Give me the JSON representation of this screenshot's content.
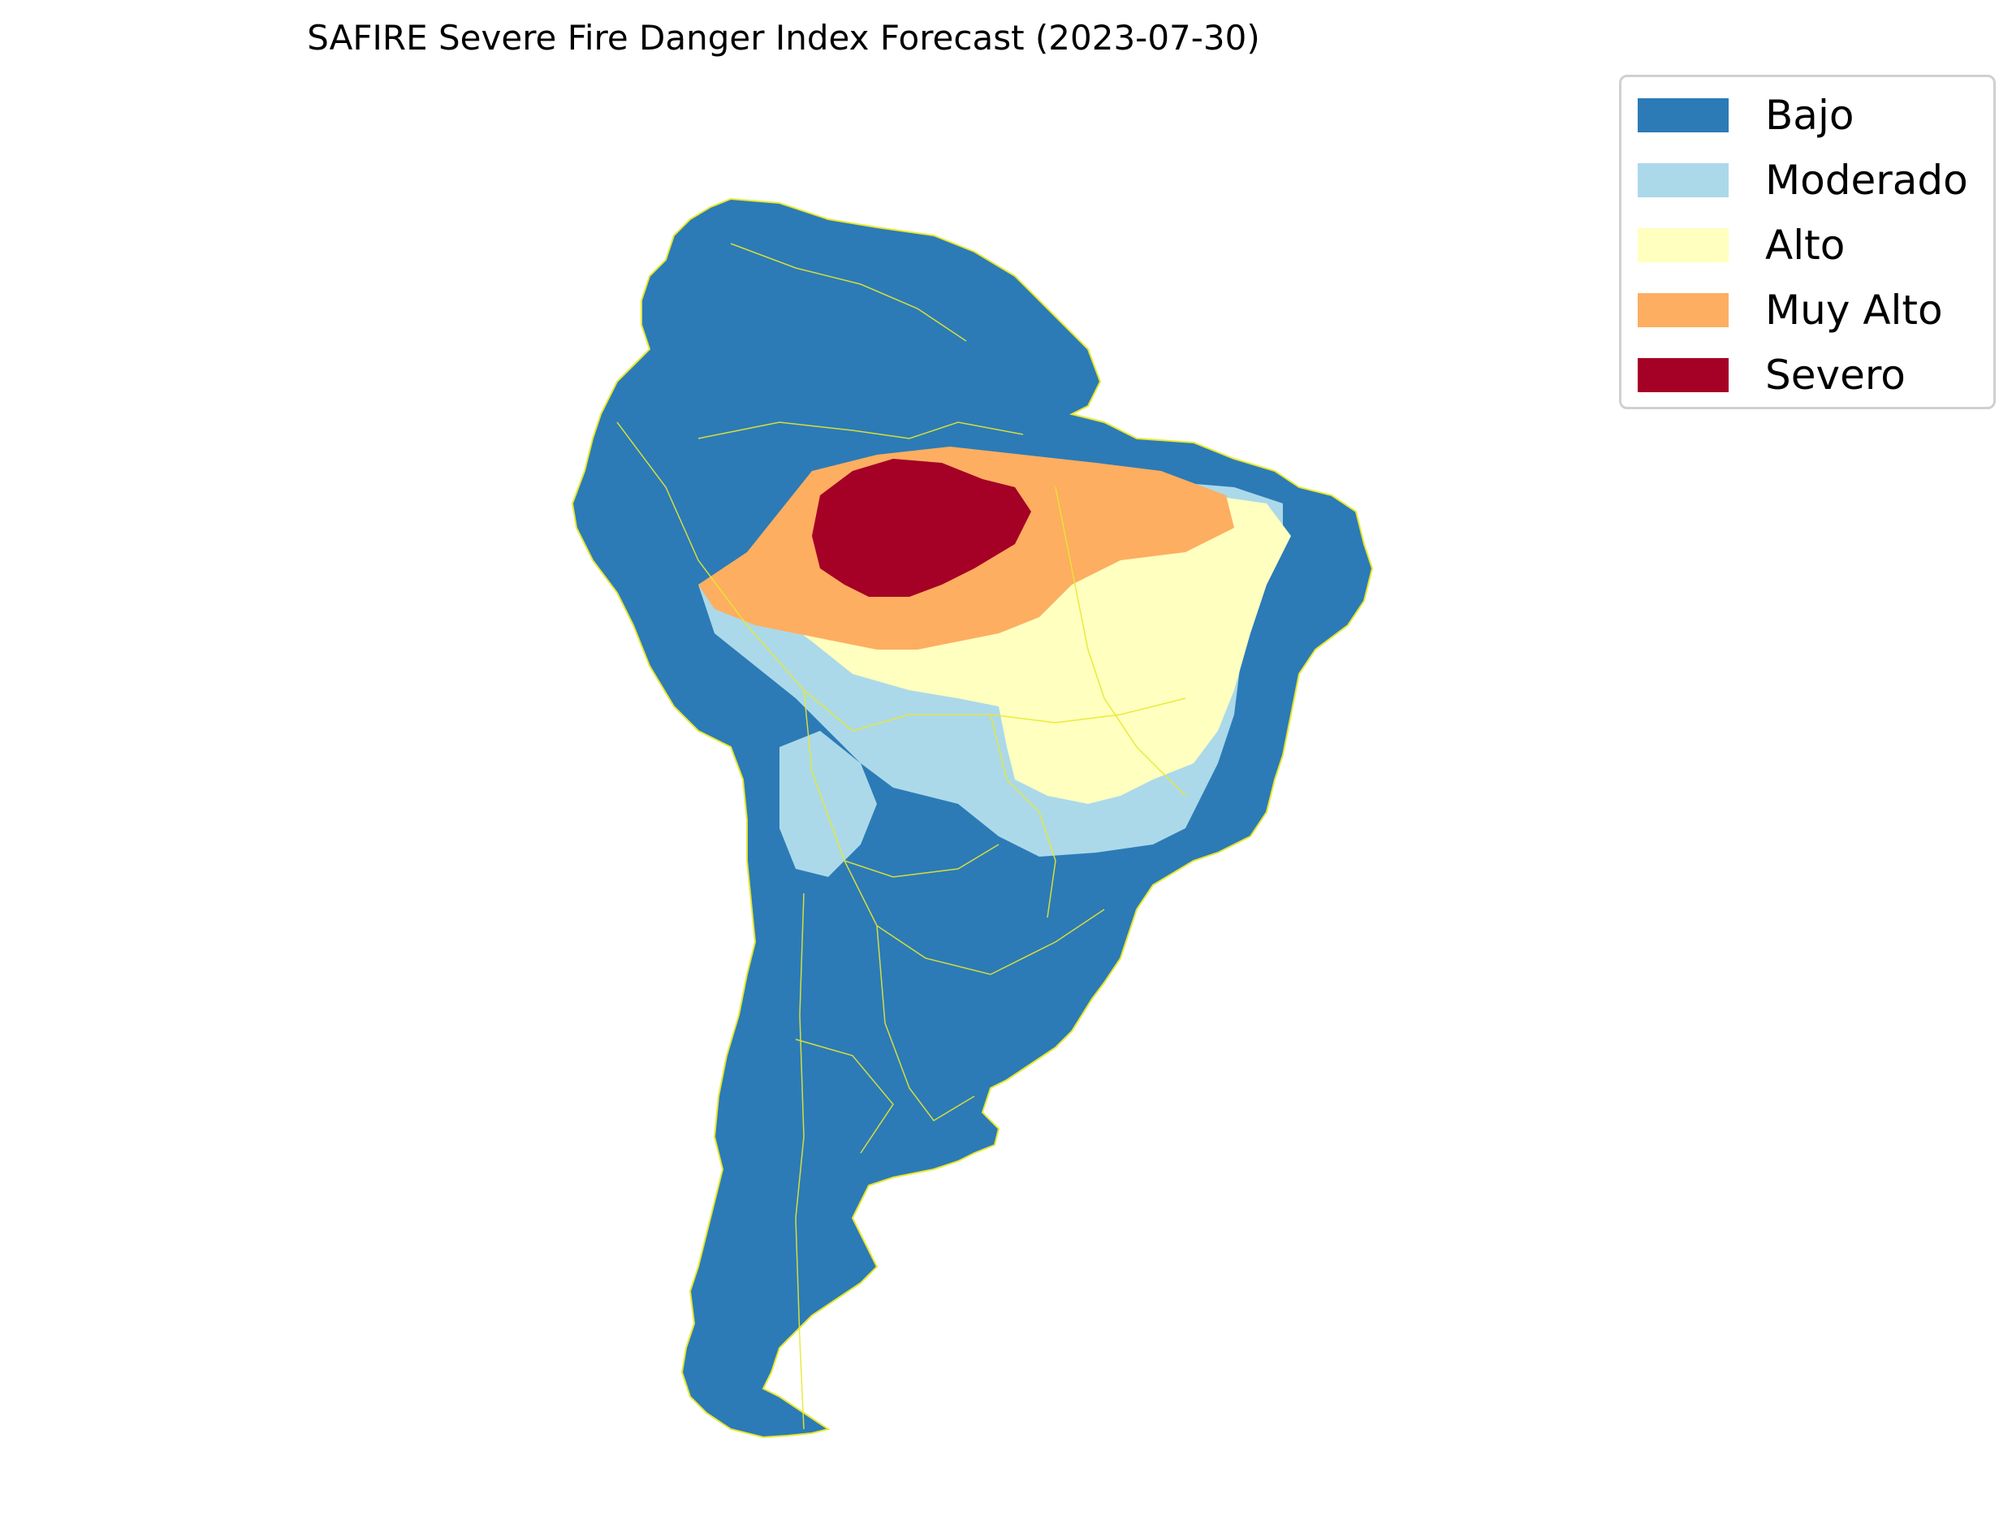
{
  "title": "SAFIRE Severe Fire Danger Index Forecast (2023-07-30)",
  "legend": {
    "items": [
      {
        "label": "Bajo",
        "color": "#2c7bb6"
      },
      {
        "label": "Moderado",
        "color": "#abd9e9"
      },
      {
        "label": "Alto",
        "color": "#ffffbf"
      },
      {
        "label": "Muy Alto",
        "color": "#fdae61"
      },
      {
        "label": "Severo",
        "color": "#a50026"
      }
    ]
  },
  "map": {
    "region": "South America",
    "base_color": "#2c7bb6",
    "border_color": "#e8e830"
  }
}
